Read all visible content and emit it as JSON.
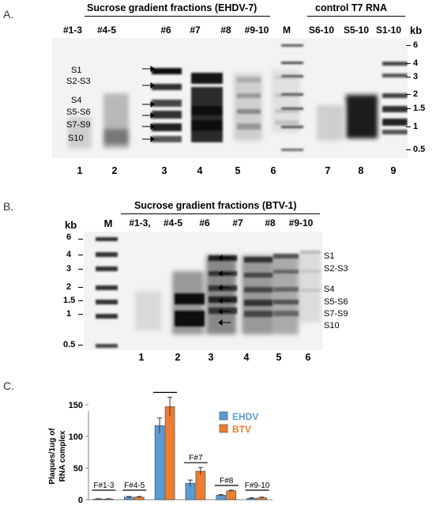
{
  "panelA": {
    "letter": "A.",
    "header_left": "Sucrose gradient fractions (EHDV-7)",
    "header_right": "control T7 RNA",
    "lanes": [
      "#1-3",
      "#4-5",
      "#6",
      "#7",
      "#8",
      "#9-10",
      "M",
      "S6-10",
      "S5-10",
      "S1-10"
    ],
    "kb_unit": "kb",
    "markers": [
      "6",
      "4",
      "3",
      "2",
      "1.5",
      "1",
      "0.5"
    ],
    "segments": [
      "S1",
      "S2-S3",
      "S4",
      "S5-S6",
      "S7-S9",
      "S10"
    ],
    "lane_numbers": [
      "1",
      "2",
      "3",
      "4",
      "5",
      "6",
      "7",
      "8",
      "9"
    ]
  },
  "panelB": {
    "letter": "B.",
    "header": "Sucrose gradient fractions (BTV-1)",
    "lanes": [
      "M",
      "#1-3,",
      "#4-5",
      "#6",
      "#7",
      "#8",
      "#9-10"
    ],
    "kb_unit": "kb",
    "markers": [
      "6",
      "4",
      "3",
      "2",
      "1.5",
      "1",
      "0.5"
    ],
    "segments": [
      "S1",
      "S2-S3",
      "S4",
      "S5-S6",
      "S7-S9",
      "S10"
    ],
    "lane_numbers": [
      "1",
      "2",
      "3",
      "4",
      "5",
      "6"
    ]
  },
  "panelC": {
    "letter": "C.",
    "chart_data": {
      "type": "bar",
      "categories": [
        "F#1-3",
        "F#4-5",
        "F#6",
        "F#7",
        "F#8",
        "F#9-10"
      ],
      "ylabel": "Plaques/1ug of RNA complex",
      "ylim": [
        0,
        165
      ],
      "yticks": [
        "0",
        "50",
        "100",
        "150"
      ],
      "legend": "top-right",
      "series": [
        {
          "name": "EHDV",
          "color": "#5b9bd5",
          "values": [
            1,
            4,
            117,
            26,
            7,
            2
          ],
          "errors": [
            0.5,
            1,
            12,
            5,
            1,
            1
          ]
        },
        {
          "name": "BTV",
          "color": "#ed7d31",
          "values": [
            1,
            4,
            147,
            45,
            14,
            3
          ],
          "errors": [
            0.5,
            1,
            15,
            6,
            1,
            1
          ]
        }
      ]
    }
  }
}
